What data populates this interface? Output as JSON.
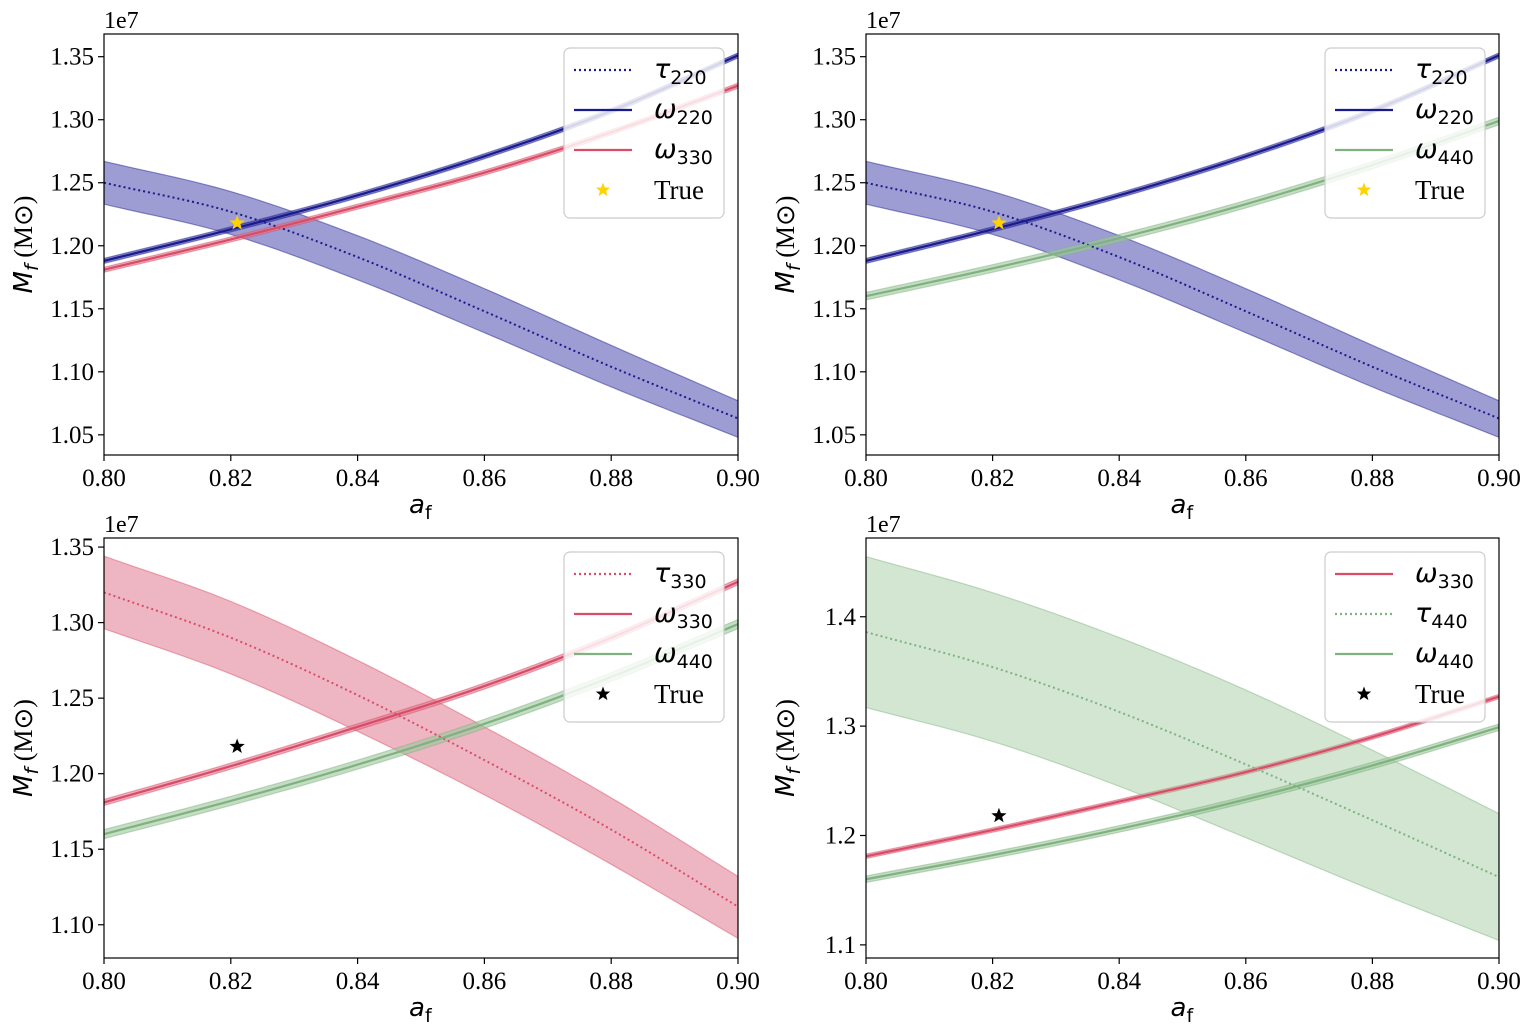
{
  "figure": {
    "colors": {
      "navy": "#1a1a8c",
      "band_navy": "#3b3ba8",
      "crimson": "#d94b67",
      "band_crimson": "#e07a90",
      "green": "#7fb27f",
      "band_green": "#9cc79c",
      "gold": "#ffd200",
      "black": "#000000"
    }
  },
  "chart_data": [
    {
      "id": "top-left",
      "type": "line",
      "xlabel": "a_f",
      "ylabel": "M_f (M⊙)",
      "offset_text": "1e7",
      "xlim": [
        0.8,
        0.9
      ],
      "ylim": [
        1.034,
        1.368
      ],
      "xticks": [
        0.8,
        0.82,
        0.84,
        0.86,
        0.88,
        0.9
      ],
      "xtick_labels": [
        "0.80",
        "0.82",
        "0.84",
        "0.86",
        "0.88",
        "0.90"
      ],
      "yticks": [
        1.05,
        1.1,
        1.15,
        1.2,
        1.25,
        1.3,
        1.35
      ],
      "ytick_labels": [
        "1.05",
        "1.10",
        "1.15",
        "1.20",
        "1.25",
        "1.30",
        "1.35"
      ],
      "legend_position": "upper right",
      "series": [
        {
          "kind": "tau",
          "mode": "220",
          "label": "τ220",
          "color": "#1a1a8c",
          "band_color": "#3b3ba8",
          "band_opacity": 0.5,
          "style": "dotted",
          "x": [
            0.8,
            0.82,
            0.84,
            0.86,
            0.88,
            0.9
          ],
          "y": [
            1.25,
            1.227,
            1.191,
            1.148,
            1.104,
            1.063
          ],
          "lower": [
            1.233,
            1.209,
            1.173,
            1.131,
            1.088,
            1.048
          ],
          "upper": [
            1.267,
            1.243,
            1.208,
            1.166,
            1.121,
            1.077
          ]
        },
        {
          "kind": "omega",
          "mode": "220",
          "label": "ω220",
          "color": "#1a1a8c",
          "band_color": "#3b3ba8",
          "band_opacity": 0.6,
          "style": "solid",
          "x": [
            0.8,
            0.82,
            0.84,
            0.86,
            0.88,
            0.9
          ],
          "y": [
            1.188,
            1.213,
            1.24,
            1.271,
            1.307,
            1.351
          ],
          "lower": [
            1.186,
            1.211,
            1.238,
            1.269,
            1.305,
            1.349
          ],
          "upper": [
            1.19,
            1.215,
            1.242,
            1.273,
            1.309,
            1.353
          ]
        },
        {
          "kind": "omega",
          "mode": "330",
          "label": "ω330",
          "color": "#d94b67",
          "band_color": "#e07a90",
          "band_opacity": 0.6,
          "style": "solid",
          "x": [
            0.8,
            0.82,
            0.84,
            0.86,
            0.88,
            0.9
          ],
          "y": [
            1.181,
            1.205,
            1.231,
            1.258,
            1.29,
            1.327
          ],
          "lower": [
            1.179,
            1.203,
            1.229,
            1.256,
            1.288,
            1.325
          ],
          "upper": [
            1.183,
            1.207,
            1.233,
            1.26,
            1.292,
            1.329
          ]
        }
      ],
      "true_point": {
        "label": "True",
        "x": 0.821,
        "y": 1.218,
        "color": "#ffd200"
      }
    },
    {
      "id": "top-right",
      "type": "line",
      "xlabel": "a_f",
      "ylabel": "M_f (M⊙)",
      "offset_text": "1e7",
      "xlim": [
        0.8,
        0.9
      ],
      "ylim": [
        1.034,
        1.368
      ],
      "xticks": [
        0.8,
        0.82,
        0.84,
        0.86,
        0.88,
        0.9
      ],
      "xtick_labels": [
        "0.80",
        "0.82",
        "0.84",
        "0.86",
        "0.88",
        "0.90"
      ],
      "yticks": [
        1.05,
        1.1,
        1.15,
        1.2,
        1.25,
        1.3,
        1.35
      ],
      "ytick_labels": [
        "1.05",
        "1.10",
        "1.15",
        "1.20",
        "1.25",
        "1.30",
        "1.35"
      ],
      "legend_position": "upper right",
      "series": [
        {
          "kind": "tau",
          "mode": "220",
          "label": "τ220",
          "color": "#1a1a8c",
          "band_color": "#3b3ba8",
          "band_opacity": 0.5,
          "style": "dotted",
          "x": [
            0.8,
            0.82,
            0.84,
            0.86,
            0.88,
            0.9
          ],
          "y": [
            1.25,
            1.227,
            1.191,
            1.148,
            1.104,
            1.063
          ],
          "lower": [
            1.233,
            1.209,
            1.173,
            1.131,
            1.088,
            1.048
          ],
          "upper": [
            1.267,
            1.243,
            1.208,
            1.166,
            1.121,
            1.077
          ]
        },
        {
          "kind": "omega",
          "mode": "220",
          "label": "ω220",
          "color": "#1a1a8c",
          "band_color": "#3b3ba8",
          "band_opacity": 0.6,
          "style": "solid",
          "x": [
            0.8,
            0.82,
            0.84,
            0.86,
            0.88,
            0.9
          ],
          "y": [
            1.188,
            1.213,
            1.24,
            1.271,
            1.307,
            1.351
          ],
          "lower": [
            1.186,
            1.211,
            1.238,
            1.269,
            1.305,
            1.349
          ],
          "upper": [
            1.19,
            1.215,
            1.242,
            1.273,
            1.309,
            1.353
          ]
        },
        {
          "kind": "omega",
          "mode": "440",
          "label": "ω440",
          "color": "#7fb27f",
          "band_color": "#9cc79c",
          "band_opacity": 0.6,
          "style": "solid",
          "x": [
            0.8,
            0.82,
            0.84,
            0.86,
            0.88,
            0.9
          ],
          "y": [
            1.16,
            1.182,
            1.206,
            1.233,
            1.264,
            1.299
          ],
          "lower": [
            1.157,
            1.179,
            1.203,
            1.23,
            1.261,
            1.296
          ],
          "upper": [
            1.163,
            1.185,
            1.209,
            1.236,
            1.267,
            1.302
          ]
        }
      ],
      "true_point": {
        "label": "True",
        "x": 0.821,
        "y": 1.218,
        "color": "#ffd200"
      }
    },
    {
      "id": "bottom-left",
      "type": "line",
      "xlabel": "a_f",
      "ylabel": "M_f (M⊙)",
      "offset_text": "1e7",
      "xlim": [
        0.8,
        0.9
      ],
      "ylim": [
        1.078,
        1.356
      ],
      "xticks": [
        0.8,
        0.82,
        0.84,
        0.86,
        0.88,
        0.9
      ],
      "xtick_labels": [
        "0.80",
        "0.82",
        "0.84",
        "0.86",
        "0.88",
        "0.90"
      ],
      "yticks": [
        1.1,
        1.15,
        1.2,
        1.25,
        1.3,
        1.35
      ],
      "ytick_labels": [
        "1.10",
        "1.15",
        "1.20",
        "1.25",
        "1.30",
        "1.35"
      ],
      "legend_position": "upper right",
      "series": [
        {
          "kind": "tau",
          "mode": "330",
          "label": "τ330",
          "color": "#d94b67",
          "band_color": "#e07a90",
          "band_opacity": 0.55,
          "style": "dotted",
          "x": [
            0.8,
            0.82,
            0.84,
            0.86,
            0.88,
            0.9
          ],
          "y": [
            1.32,
            1.29,
            1.252,
            1.209,
            1.163,
            1.112
          ],
          "lower": [
            1.296,
            1.266,
            1.228,
            1.186,
            1.14,
            1.091
          ],
          "upper": [
            1.344,
            1.314,
            1.275,
            1.231,
            1.184,
            1.132
          ]
        },
        {
          "kind": "omega",
          "mode": "330",
          "label": "ω330",
          "color": "#d94b67",
          "band_color": "#e07a90",
          "band_opacity": 0.6,
          "style": "solid",
          "x": [
            0.8,
            0.82,
            0.84,
            0.86,
            0.88,
            0.9
          ],
          "y": [
            1.181,
            1.205,
            1.231,
            1.258,
            1.29,
            1.327
          ],
          "lower": [
            1.179,
            1.203,
            1.229,
            1.256,
            1.288,
            1.325
          ],
          "upper": [
            1.183,
            1.207,
            1.233,
            1.26,
            1.292,
            1.329
          ]
        },
        {
          "kind": "omega",
          "mode": "440",
          "label": "ω440",
          "color": "#7fb27f",
          "band_color": "#9cc79c",
          "band_opacity": 0.6,
          "style": "solid",
          "x": [
            0.8,
            0.82,
            0.84,
            0.86,
            0.88,
            0.9
          ],
          "y": [
            1.16,
            1.182,
            1.206,
            1.233,
            1.264,
            1.299
          ],
          "lower": [
            1.157,
            1.179,
            1.203,
            1.23,
            1.261,
            1.296
          ],
          "upper": [
            1.163,
            1.185,
            1.209,
            1.236,
            1.267,
            1.302
          ]
        }
      ],
      "true_point": {
        "label": "True",
        "x": 0.821,
        "y": 1.218,
        "color": "#000000"
      }
    },
    {
      "id": "bottom-right",
      "type": "line",
      "xlabel": "a_f",
      "ylabel": "M_f (M⊙)",
      "offset_text": "1e7",
      "xlim": [
        0.8,
        0.9
      ],
      "ylim": [
        1.088,
        1.472
      ],
      "xticks": [
        0.8,
        0.82,
        0.84,
        0.86,
        0.88,
        0.9
      ],
      "xtick_labels": [
        "0.80",
        "0.82",
        "0.84",
        "0.86",
        "0.88",
        "0.90"
      ],
      "yticks": [
        1.1,
        1.2,
        1.3,
        1.4
      ],
      "ytick_labels": [
        "1.1",
        "1.2",
        "1.3",
        "1.4"
      ],
      "legend_position": "upper right",
      "series": [
        {
          "kind": "omega",
          "mode": "330",
          "label": "ω330",
          "color": "#d94b67",
          "band_color": "#e07a90",
          "band_opacity": 0.6,
          "style": "solid",
          "x": [
            0.8,
            0.82,
            0.84,
            0.86,
            0.88,
            0.9
          ],
          "y": [
            1.181,
            1.205,
            1.231,
            1.258,
            1.29,
            1.327
          ],
          "lower": [
            1.179,
            1.203,
            1.229,
            1.256,
            1.288,
            1.325
          ],
          "upper": [
            1.183,
            1.207,
            1.233,
            1.26,
            1.292,
            1.329
          ]
        },
        {
          "kind": "tau",
          "mode": "440",
          "label": "τ440",
          "color": "#7fb27f",
          "band_color": "#9cc79c",
          "band_opacity": 0.45,
          "style": "dotted",
          "x": [
            0.8,
            0.82,
            0.84,
            0.86,
            0.88,
            0.9
          ],
          "y": [
            1.386,
            1.354,
            1.313,
            1.265,
            1.214,
            1.162
          ],
          "lower": [
            1.317,
            1.286,
            1.245,
            1.198,
            1.15,
            1.104
          ],
          "upper": [
            1.455,
            1.422,
            1.381,
            1.333,
            1.278,
            1.22
          ]
        },
        {
          "kind": "omega",
          "mode": "440",
          "label": "ω440",
          "color": "#7fb27f",
          "band_color": "#9cc79c",
          "band_opacity": 0.6,
          "style": "solid",
          "x": [
            0.8,
            0.82,
            0.84,
            0.86,
            0.88,
            0.9
          ],
          "y": [
            1.16,
            1.182,
            1.206,
            1.233,
            1.264,
            1.299
          ],
          "lower": [
            1.157,
            1.179,
            1.203,
            1.23,
            1.261,
            1.296
          ],
          "upper": [
            1.163,
            1.185,
            1.209,
            1.236,
            1.267,
            1.302
          ]
        }
      ],
      "true_point": {
        "label": "True",
        "x": 0.821,
        "y": 1.218,
        "color": "#000000"
      }
    }
  ]
}
